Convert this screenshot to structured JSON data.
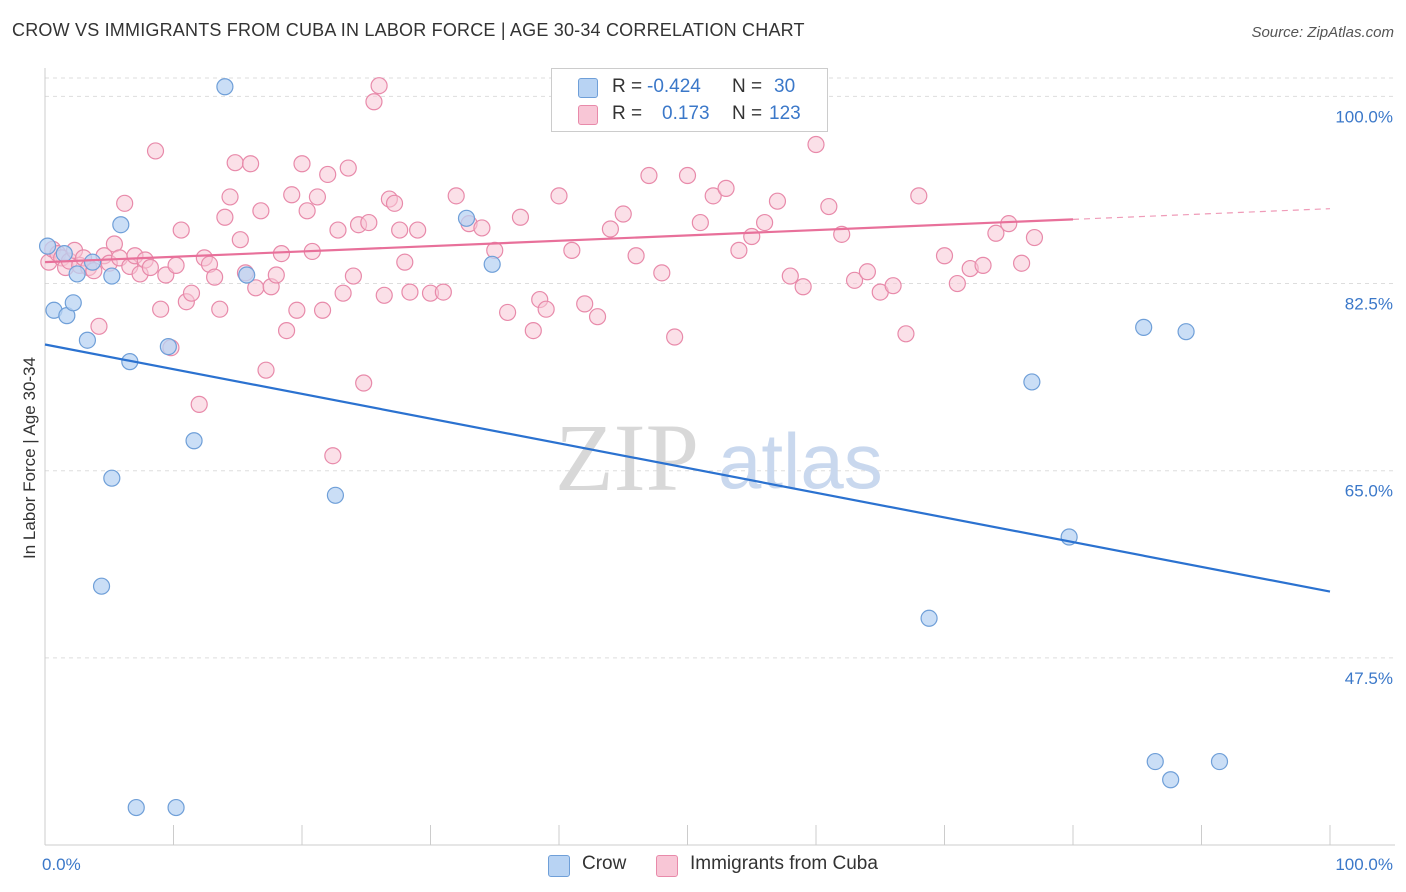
{
  "title": "CROW VS IMMIGRANTS FROM CUBA IN LABOR FORCE | AGE 30-34 CORRELATION CHART",
  "source": "Source: ZipAtlas.com",
  "watermark": {
    "zip": "ZIP",
    "atlas": "atlas"
  },
  "legend": {
    "rows": [
      {
        "r_label": "R =",
        "r_value": "-0.424",
        "n_label": "N =",
        "n_value": "30"
      },
      {
        "r_label": "R =",
        "r_value": "0.173",
        "n_label": "N =",
        "n_value": "123"
      }
    ]
  },
  "bottom_legend": {
    "crow": "Crow",
    "cuba": "Immigrants from Cuba"
  },
  "colors": {
    "crow_fill": "#b8d3f3",
    "crow_stroke": "#6f9fd8",
    "crow_line": "#2b72d0",
    "cuba_fill": "#f8c6d6",
    "cuba_stroke": "#e88aaa",
    "cuba_line": "#e8709a",
    "axis_text": "#3b78c9"
  },
  "chart_data": {
    "type": "scatter",
    "title": "CROW VS IMMIGRANTS FROM CUBA IN LABOR FORCE | AGE 30-34 CORRELATION CHART",
    "xlabel": "",
    "ylabel": "In Labor Force | Age 30-34",
    "xlim": [
      0,
      100
    ],
    "ylim": [
      30,
      102
    ],
    "x_tick_labels": [
      "0.0%",
      "100.0%"
    ],
    "y_ticks": [
      47.5,
      65.0,
      82.5,
      100.0
    ],
    "y_tick_labels": [
      "47.5%",
      "65.0%",
      "82.5%",
      "100.0%"
    ],
    "grid": true,
    "series": [
      {
        "name": "Crow",
        "points": [
          [
            0.2,
            86.0
          ],
          [
            1.5,
            85.3
          ],
          [
            0.7,
            80.0
          ],
          [
            1.7,
            79.5
          ],
          [
            2.2,
            80.7
          ],
          [
            2.5,
            83.4
          ],
          [
            3.3,
            77.2
          ],
          [
            3.7,
            84.5
          ],
          [
            5.2,
            83.2
          ],
          [
            5.9,
            88.0
          ],
          [
            6.6,
            75.2
          ],
          [
            7.1,
            33.5
          ],
          [
            9.6,
            76.6
          ],
          [
            10.2,
            33.5
          ],
          [
            11.6,
            67.8
          ],
          [
            5.2,
            64.3
          ],
          [
            4.4,
            54.2
          ],
          [
            14.0,
            100.9
          ],
          [
            15.7,
            83.3
          ],
          [
            22.6,
            62.7
          ],
          [
            32.8,
            88.6
          ],
          [
            34.8,
            84.3
          ],
          [
            76.8,
            73.3
          ],
          [
            79.7,
            58.8
          ],
          [
            85.5,
            78.4
          ],
          [
            88.8,
            78.0
          ],
          [
            86.4,
            37.8
          ],
          [
            87.6,
            36.1
          ],
          [
            91.4,
            37.8
          ],
          [
            68.8,
            51.2
          ]
        ],
        "trend": {
          "x": [
            0,
            100
          ],
          "y": [
            76.8,
            53.7
          ]
        }
      },
      {
        "name": "Immigrants from Cuba",
        "points": [
          [
            0.3,
            84.5
          ],
          [
            0.6,
            85.7
          ],
          [
            1.0,
            85.3
          ],
          [
            1.3,
            84.9
          ],
          [
            1.6,
            84.0
          ],
          [
            1.9,
            84.6
          ],
          [
            2.3,
            85.6
          ],
          [
            2.7,
            84.2
          ],
          [
            3.0,
            84.9
          ],
          [
            3.4,
            84.0
          ],
          [
            3.8,
            83.7
          ],
          [
            4.2,
            78.5
          ],
          [
            4.6,
            85.1
          ],
          [
            5.0,
            84.4
          ],
          [
            5.4,
            86.2
          ],
          [
            5.8,
            84.9
          ],
          [
            6.2,
            90.0
          ],
          [
            6.6,
            84.1
          ],
          [
            7.0,
            85.1
          ],
          [
            7.4,
            83.4
          ],
          [
            7.8,
            84.7
          ],
          [
            8.2,
            84.0
          ],
          [
            8.6,
            94.9
          ],
          [
            9.0,
            80.1
          ],
          [
            9.4,
            83.3
          ],
          [
            9.8,
            76.5
          ],
          [
            10.2,
            84.2
          ],
          [
            10.6,
            87.5
          ],
          [
            11.0,
            80.8
          ],
          [
            11.4,
            81.6
          ],
          [
            12.0,
            71.2
          ],
          [
            12.4,
            84.9
          ],
          [
            12.8,
            84.3
          ],
          [
            13.2,
            83.1
          ],
          [
            13.6,
            80.1
          ],
          [
            14.0,
            88.7
          ],
          [
            14.4,
            90.6
          ],
          [
            14.8,
            93.8
          ],
          [
            15.2,
            86.6
          ],
          [
            15.6,
            83.5
          ],
          [
            16.0,
            93.7
          ],
          [
            16.4,
            82.1
          ],
          [
            16.8,
            89.3
          ],
          [
            17.2,
            74.4
          ],
          [
            17.6,
            82.2
          ],
          [
            18.0,
            83.3
          ],
          [
            18.4,
            85.3
          ],
          [
            18.8,
            78.1
          ],
          [
            19.2,
            90.8
          ],
          [
            19.6,
            80.0
          ],
          [
            20.0,
            93.7
          ],
          [
            20.4,
            89.3
          ],
          [
            20.8,
            85.5
          ],
          [
            21.2,
            90.6
          ],
          [
            21.6,
            80.0
          ],
          [
            22.0,
            92.7
          ],
          [
            22.4,
            66.4
          ],
          [
            22.8,
            87.5
          ],
          [
            23.2,
            81.6
          ],
          [
            23.6,
            93.3
          ],
          [
            24.0,
            83.2
          ],
          [
            24.4,
            88.0
          ],
          [
            24.8,
            73.2
          ],
          [
            25.2,
            88.2
          ],
          [
            25.6,
            99.5
          ],
          [
            26.0,
            101.0
          ],
          [
            26.4,
            81.4
          ],
          [
            26.8,
            90.4
          ],
          [
            27.2,
            90.0
          ],
          [
            27.6,
            87.5
          ],
          [
            28.0,
            84.5
          ],
          [
            28.4,
            81.7
          ],
          [
            29.0,
            87.5
          ],
          [
            30.0,
            81.6
          ],
          [
            31.0,
            81.7
          ],
          [
            32.0,
            90.7
          ],
          [
            33.0,
            88.1
          ],
          [
            34.0,
            87.7
          ],
          [
            35.0,
            85.6
          ],
          [
            36.0,
            79.8
          ],
          [
            37.0,
            88.7
          ],
          [
            38.0,
            78.1
          ],
          [
            38.5,
            81.0
          ],
          [
            39.0,
            80.1
          ],
          [
            40.0,
            90.7
          ],
          [
            41.0,
            85.6
          ],
          [
            42.0,
            80.6
          ],
          [
            43.0,
            79.4
          ],
          [
            44.0,
            87.6
          ],
          [
            45.0,
            89.0
          ],
          [
            46.0,
            85.1
          ],
          [
            47.0,
            92.6
          ],
          [
            48.0,
            83.5
          ],
          [
            49.0,
            77.5
          ],
          [
            50.0,
            92.6
          ],
          [
            51.0,
            88.2
          ],
          [
            52.0,
            90.7
          ],
          [
            53.0,
            91.4
          ],
          [
            54.0,
            85.6
          ],
          [
            55.0,
            86.9
          ],
          [
            56.0,
            88.2
          ],
          [
            57.0,
            90.2
          ],
          [
            58.0,
            83.2
          ],
          [
            59.0,
            82.2
          ],
          [
            60.0,
            95.5
          ],
          [
            61.0,
            89.7
          ],
          [
            62.0,
            87.1
          ],
          [
            63.0,
            82.8
          ],
          [
            64.0,
            83.6
          ],
          [
            65.0,
            81.7
          ],
          [
            66.0,
            82.3
          ],
          [
            67.0,
            77.8
          ],
          [
            68.0,
            90.7
          ],
          [
            70.0,
            85.1
          ],
          [
            71.0,
            82.5
          ],
          [
            72.0,
            83.9
          ],
          [
            73.0,
            84.2
          ],
          [
            74.0,
            87.2
          ],
          [
            75.0,
            88.1
          ],
          [
            76.0,
            84.4
          ],
          [
            77.0,
            86.8
          ]
        ],
        "trend": {
          "x": [
            0,
            80
          ],
          "y": [
            84.5,
            88.5
          ]
        },
        "trend_dashed": {
          "x": [
            80,
            100
          ],
          "y": [
            88.5,
            89.5
          ]
        }
      }
    ]
  }
}
